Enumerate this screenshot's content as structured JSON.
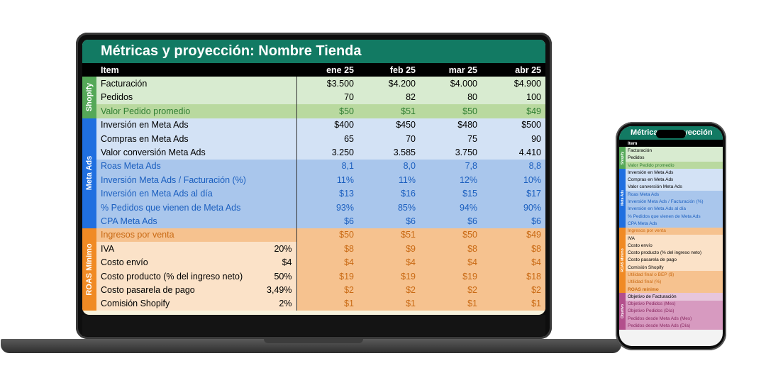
{
  "laptop": {
    "title": "Métricas y proyección: Nombre Tienda",
    "header": {
      "item": "Item",
      "months": [
        "ene 25",
        "feb 25",
        "mar 25",
        "abr 25"
      ]
    },
    "groups": {
      "shopify": "Shopify",
      "meta": "Meta Ads",
      "roas": "ROAS Mínimo"
    },
    "rows": [
      {
        "label": "Facturación",
        "extra": "",
        "values": [
          "$3.500",
          "$4.200",
          "$4.000",
          "$4.900"
        ]
      },
      {
        "label": "Pedidos",
        "extra": "",
        "values": [
          "70",
          "82",
          "80",
          "100"
        ]
      },
      {
        "label": "Valor Pedido promedio",
        "extra": "",
        "values": [
          "$50",
          "$51",
          "$50",
          "$49"
        ]
      },
      {
        "label": "Inversión en Meta Ads",
        "extra": "",
        "values": [
          "$400",
          "$450",
          "$480",
          "$500"
        ]
      },
      {
        "label": "Compras en Meta Ads",
        "extra": "",
        "values": [
          "65",
          "70",
          "75",
          "90"
        ]
      },
      {
        "label": "Valor conversión Meta Ads",
        "extra": "",
        "values": [
          "3.250",
          "3.585",
          "3.750",
          "4.410"
        ]
      },
      {
        "label": "Roas Meta Ads",
        "extra": "",
        "values": [
          "8,1",
          "8,0",
          "7,8",
          "8,8"
        ]
      },
      {
        "label": "Inversión Meta Ads / Facturación (%)",
        "extra": "",
        "values": [
          "11%",
          "11%",
          "12%",
          "10%"
        ]
      },
      {
        "label": "Inversión en Meta Ads al día",
        "extra": "",
        "values": [
          "$13",
          "$16",
          "$15",
          "$17"
        ]
      },
      {
        "label": "% Pedidos que vienen de Meta Ads",
        "extra": "",
        "values": [
          "93%",
          "85%",
          "94%",
          "90%"
        ]
      },
      {
        "label": "CPA Meta Ads",
        "extra": "",
        "values": [
          "$6",
          "$6",
          "$6",
          "$6"
        ]
      },
      {
        "label": "Ingresos por venta",
        "extra": "",
        "values": [
          "$50",
          "$51",
          "$50",
          "$49"
        ]
      },
      {
        "label": "IVA",
        "extra": "20%",
        "values": [
          "$8",
          "$9",
          "$8",
          "$8"
        ]
      },
      {
        "label": "Costo envío",
        "extra": "$4",
        "values": [
          "$4",
          "$4",
          "$4",
          "$4"
        ]
      },
      {
        "label": "Costo producto (% del ingreso neto)",
        "extra": "50%",
        "values": [
          "$19",
          "$19",
          "$19",
          "$18"
        ]
      },
      {
        "label": "Costo pasarela de pago",
        "extra": "3,49%",
        "values": [
          "$2",
          "$2",
          "$2",
          "$2"
        ]
      },
      {
        "label": "Comisión Shopify",
        "extra": "2%",
        "values": [
          "$1",
          "$1",
          "$1",
          "$1"
        ]
      }
    ]
  },
  "phone": {
    "title": "Métricas y proyección",
    "header": {
      "item": "Item"
    },
    "groups": {
      "shopify": "Shopify",
      "meta": "Meta Ads",
      "roas": "ROAS Mínimo",
      "objetivo": "Objetivo"
    },
    "rows": [
      "Facturación",
      "Pedidos",
      "Valor Pedido promedio",
      "Inversión en Meta Ads",
      "Compras en Meta Ads",
      "Valor conversión Meta Ads",
      "Roas Meta Ads",
      "Inversión Meta Ads / Facturación (%)",
      "Inversión en Meta Ads al día",
      "% Pedidos que vienen de Meta Ads",
      "CPA Meta Ads",
      "Ingresos por venta",
      "IVA",
      "Costo envío",
      "Costo producto (% del ingreso neto)",
      "Costo pasarela de pago",
      "Comisión Shopify",
      "Utilidad final o BEP ($)",
      "Utilidad final (%)",
      "ROAS mínimo",
      "Objetivo de Facturación",
      "Objetivo Pedidos (Mes)",
      "Objetivo Pedidos (Día)",
      "Pedidos desde Meta Ads (Mes)",
      "Pedidos desde Meta Ads (Día)"
    ]
  },
  "colors": {
    "title_bg": "#127a63",
    "shopify": "#55a858",
    "meta": "#1f6fe0",
    "roas": "#f08a24",
    "objetivo": "#b34f8c"
  }
}
